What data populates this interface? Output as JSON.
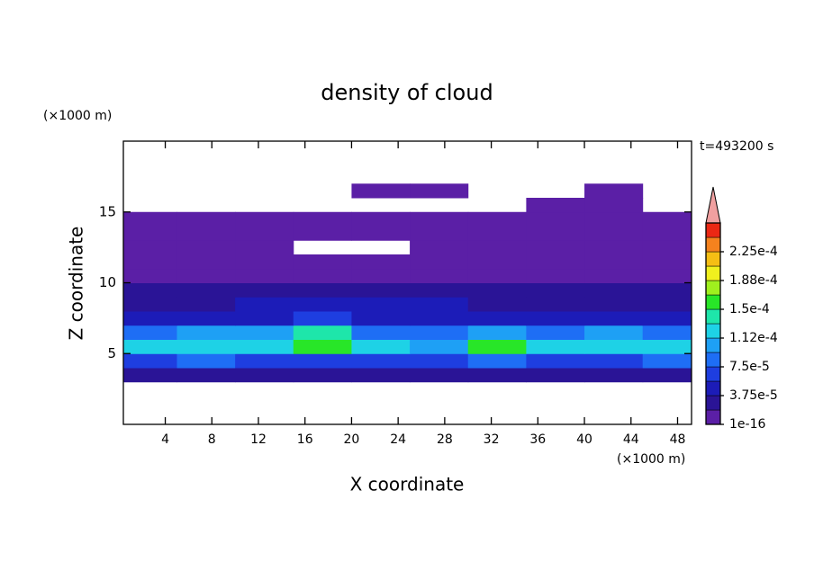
{
  "chart_data": {
    "type": "heatmap",
    "title": "density of cloud",
    "x_label": "X coordinate",
    "y_label": "Z coordinate",
    "x_unit": "(×1000 m)",
    "y_unit": "(×1000 m)",
    "annotation": "t=493200 s",
    "xlim": [
      0.4,
      49.2
    ],
    "ylim": [
      0,
      20
    ],
    "xticks": [
      4,
      8,
      12,
      16,
      20,
      24,
      28,
      32,
      36,
      40,
      44,
      48
    ],
    "yticks": [
      5,
      10,
      15
    ],
    "x_edges": [
      0.4,
      5,
      10,
      15,
      20,
      25,
      30,
      35,
      40,
      45,
      49.2
    ],
    "y_edges": [
      3,
      4,
      5,
      6,
      7,
      8,
      9,
      10,
      11,
      12,
      13,
      14,
      15,
      16,
      17,
      18
    ],
    "values": [
      [
        2.5e-05,
        2.5e-05,
        2.5e-05,
        2.5e-05,
        2.5e-05,
        2.5e-05,
        2.5e-05,
        2.5e-05,
        2.5e-05,
        2.5e-05
      ],
      [
        6e-05,
        8e-05,
        7e-05,
        6e-05,
        7e-05,
        6e-05,
        8e-05,
        7e-05,
        6e-05,
        8e-05
      ],
      [
        0.00012,
        0.00013,
        0.00012,
        0.00015,
        0.00012,
        0.00011,
        0.00016,
        0.00013,
        0.00012,
        0.00013
      ],
      [
        9e-05,
        0.0001,
        0.00011,
        0.00014,
        9e-05,
        8e-05,
        0.0001,
        9e-05,
        0.0001,
        9e-05
      ],
      [
        4e-05,
        5e-05,
        5e-05,
        6e-05,
        5e-05,
        5e-05,
        5e-05,
        4e-05,
        4e-05,
        4e-05
      ],
      [
        3e-05,
        3e-05,
        4e-05,
        4.5e-05,
        4e-05,
        4e-05,
        3.5e-05,
        3e-05,
        3e-05,
        3e-05
      ],
      [
        2e-05,
        2e-05,
        2.5e-05,
        2.5e-05,
        2.5e-05,
        2.5e-05,
        2e-05,
        2e-05,
        2e-05,
        2e-05
      ],
      [
        1e-05,
        1e-05,
        1e-05,
        1.2e-05,
        1.2e-05,
        1e-05,
        1e-05,
        1e-05,
        1e-05,
        1e-05
      ],
      [
        5e-06,
        5e-06,
        5e-06,
        5e-06,
        5e-06,
        5e-06,
        5e-06,
        5e-06,
        5e-06,
        5e-06
      ],
      [
        5e-06,
        5e-06,
        5e-06,
        null,
        null,
        5e-06,
        5e-06,
        5e-06,
        5e-06,
        5e-06
      ],
      [
        5e-06,
        5e-06,
        5e-06,
        5e-06,
        5e-06,
        5e-06,
        5e-06,
        5e-06,
        5e-06,
        5e-06
      ],
      [
        5e-06,
        5e-06,
        5e-06,
        5e-06,
        5e-06,
        5e-06,
        5e-06,
        5e-06,
        5e-06,
        5e-06
      ],
      [
        null,
        null,
        null,
        null,
        null,
        null,
        null,
        5e-06,
        5e-06,
        null
      ],
      [
        null,
        null,
        null,
        null,
        5e-06,
        5e-06,
        null,
        null,
        5e-06,
        null
      ],
      [
        null,
        null,
        null,
        null,
        null,
        null,
        null,
        null,
        null,
        null
      ]
    ],
    "levels": [
      1e-16,
      1.875e-05,
      3.75e-05,
      5.625e-05,
      7.5e-05,
      9.375e-05,
      0.0001125,
      0.00013125,
      0.00015,
      0.00016875,
      0.0001875,
      0.00020625,
      0.000225,
      0.00024375,
      0.0002625
    ],
    "colors": [
      "#5b1fa6",
      "#2a1496",
      "#1c1cb8",
      "#1e3ee0",
      "#1e6ef5",
      "#1ea0f5",
      "#1ed2e6",
      "#1ee6aa",
      "#28e628",
      "#a0f01e",
      "#f0f01e",
      "#f5be14",
      "#f5821e",
      "#eb2814"
    ],
    "extend_color": "#f0a0a0",
    "colorbar_ticks": [
      1e-16,
      {
        "value": 3.75e-05,
        "label": "3.75e-5"
      },
      {
        "value": 7.5e-05,
        "label": "7.5e-5"
      },
      {
        "value": 0.0001125,
        "label": "1.12e-4"
      },
      {
        "value": 0.00015,
        "label": "1.5e-4"
      },
      {
        "value": 0.0001875,
        "label": "1.88e-4"
      },
      {
        "value": 0.000225,
        "label": "2.25e-4"
      }
    ]
  }
}
